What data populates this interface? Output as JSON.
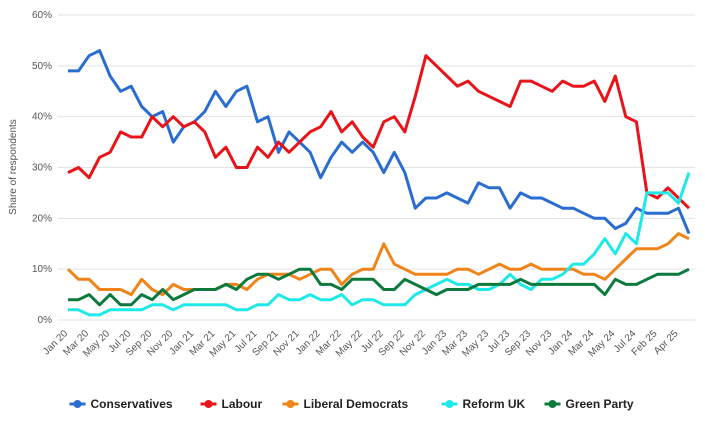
{
  "chart_data": {
    "type": "line",
    "y_label": "Share of respondents",
    "categories": [
      "Jan 20",
      null,
      "Mar 20",
      null,
      "May 20",
      null,
      "Jul 20",
      null,
      "Sep 20",
      null,
      "Nov 20",
      null,
      "Jan 21",
      null,
      "Mar 21",
      null,
      "May 21",
      null,
      "Jul 21",
      null,
      "Sep 21",
      null,
      "Nov 21",
      null,
      "Jan 22",
      null,
      "Mar 22",
      null,
      "May 22",
      null,
      "Jul 22",
      null,
      "Sep 22",
      null,
      "Nov 22",
      null,
      "Jan 23",
      null,
      "Mar 23",
      null,
      "May 23",
      null,
      "Jul 23",
      null,
      "Sep 23",
      null,
      "Nov 23",
      null,
      "Jan 24",
      null,
      "Mar 24",
      null,
      "May 24",
      null,
      "Jul 24",
      null,
      "Feb 25",
      null,
      "Apr 25",
      null
    ],
    "series": [
      {
        "name": "Conservatives",
        "color": "#2a6dd1",
        "values": [
          49,
          49,
          52,
          53,
          48,
          45,
          46,
          42,
          40,
          41,
          35,
          38,
          39,
          41,
          45,
          42,
          45,
          46,
          39,
          40,
          33,
          37,
          35,
          33,
          28,
          32,
          35,
          33,
          35,
          33,
          29,
          33,
          29,
          22,
          24,
          24,
          25,
          24,
          23,
          27,
          26,
          26,
          22,
          25,
          24,
          24,
          23,
          22,
          22,
          21,
          20,
          20,
          18,
          19,
          22,
          21,
          21,
          21,
          22,
          17
        ]
      },
      {
        "name": "Labour",
        "color": "#e8141a",
        "values": [
          29,
          30,
          28,
          32,
          33,
          37,
          36,
          36,
          40,
          38,
          40,
          38,
          39,
          37,
          32,
          34,
          30,
          30,
          34,
          32,
          35,
          33,
          35,
          37,
          38,
          41,
          37,
          39,
          36,
          34,
          39,
          40,
          37,
          44,
          52,
          50,
          48,
          46,
          47,
          45,
          44,
          43,
          42,
          47,
          47,
          46,
          45,
          47,
          46,
          46,
          47,
          43,
          48,
          40,
          39,
          25,
          24,
          26,
          24,
          22
        ]
      },
      {
        "name": "Liberal Democrats",
        "color": "#f08418",
        "values": [
          10,
          8,
          8,
          6,
          6,
          6,
          5,
          8,
          6,
          5,
          7,
          6,
          6,
          6,
          6,
          7,
          7,
          6,
          8,
          9,
          9,
          9,
          8,
          9,
          10,
          10,
          7,
          9,
          10,
          10,
          15,
          11,
          10,
          9,
          9,
          9,
          9,
          10,
          10,
          9,
          10,
          11,
          10,
          10,
          11,
          10,
          10,
          10,
          10,
          9,
          9,
          8,
          10,
          12,
          14,
          14,
          14,
          15,
          17,
          16
        ]
      },
      {
        "name": "Reform UK",
        "color": "#1fe8e8",
        "values": [
          2,
          2,
          1,
          1,
          2,
          2,
          2,
          2,
          3,
          3,
          2,
          3,
          3,
          3,
          3,
          3,
          2,
          2,
          3,
          3,
          5,
          4,
          4,
          5,
          4,
          4,
          5,
          3,
          4,
          4,
          3,
          3,
          3,
          5,
          6,
          7,
          8,
          7,
          7,
          6,
          6,
          7,
          9,
          7,
          6,
          8,
          8,
          9,
          11,
          11,
          13,
          16,
          13,
          17,
          15,
          25,
          25,
          25,
          23,
          29
        ]
      },
      {
        "name": "Green Party",
        "color": "#0b7a3c",
        "values": [
          4,
          4,
          5,
          3,
          5,
          3,
          3,
          5,
          4,
          6,
          4,
          5,
          6,
          6,
          6,
          7,
          6,
          8,
          9,
          9,
          8,
          9,
          10,
          10,
          7,
          7,
          6,
          8,
          8,
          8,
          6,
          6,
          8,
          7,
          6,
          5,
          6,
          6,
          6,
          7,
          7,
          7,
          7,
          8,
          7,
          7,
          7,
          7,
          7,
          7,
          7,
          5,
          8,
          7,
          7,
          8,
          9,
          9,
          9,
          10
        ]
      }
    ],
    "ylim": [
      0,
      60
    ],
    "yticks": [
      {
        "value": 0,
        "label": "0%"
      },
      {
        "value": 10,
        "label": "10%"
      },
      {
        "value": 20,
        "label": "20%"
      },
      {
        "value": 30,
        "label": "30%"
      },
      {
        "value": 40,
        "label": "40%"
      },
      {
        "value": 50,
        "label": "50%"
      },
      {
        "value": 60,
        "label": "60%"
      }
    ],
    "grid": true,
    "legend": "bottom"
  }
}
